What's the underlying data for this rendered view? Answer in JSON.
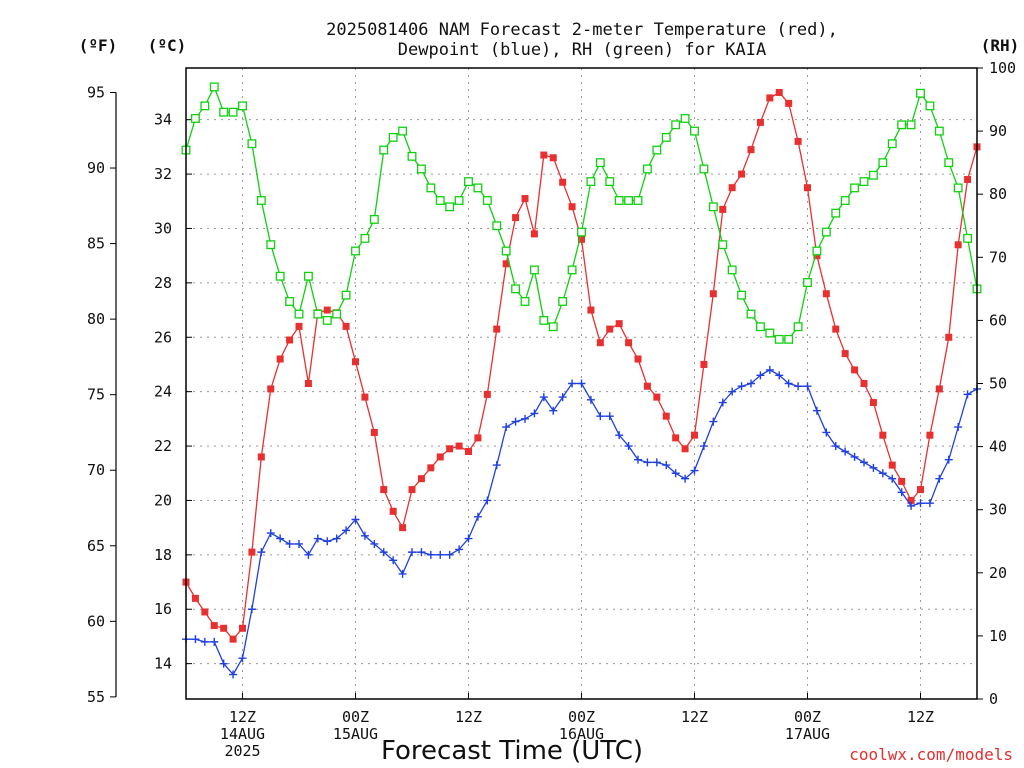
{
  "chart_data": {
    "type": "line",
    "title_line1": "2025081406 NAM Forecast 2-meter Temperature (red),",
    "title_line2": "Dewpoint (blue), RH (green) for KAIA",
    "xlabel": "Forecast Time (UTC)",
    "credit": "coolwx.com/models",
    "unit_f": "(ºF)",
    "unit_c": "(ºC)",
    "unit_rh": "(RH)",
    "x_unit": "forecast hour",
    "x_range": [
      0,
      84
    ],
    "celsius_range": [
      12.7,
      35.9
    ],
    "fahrenheit_ticks": [
      55,
      60,
      65,
      70,
      75,
      80,
      85,
      90,
      95
    ],
    "fahrenheit_tick_labels": [
      "55",
      "60",
      "65",
      "70",
      "75",
      "80",
      "85",
      "90",
      "95"
    ],
    "celsius_ticks": [
      14,
      16,
      18,
      20,
      22,
      24,
      26,
      28,
      30,
      32,
      34
    ],
    "celsius_tick_labels": [
      "14",
      "16",
      "18",
      "20",
      "22",
      "24",
      "26",
      "28",
      "30",
      "32",
      "34"
    ],
    "rh_range": [
      0,
      100
    ],
    "rh_ticks": [
      0,
      10,
      20,
      30,
      40,
      50,
      60,
      70,
      80,
      90,
      100
    ],
    "rh_tick_labels": [
      "0",
      "10",
      "20",
      "30",
      "40",
      "50",
      "60",
      "70",
      "80",
      "90",
      "100"
    ],
    "x_ticks": [
      {
        "x": 6,
        "lines": [
          "12Z",
          "14AUG",
          "2025"
        ]
      },
      {
        "x": 18,
        "lines": [
          "00Z",
          "15AUG"
        ]
      },
      {
        "x": 30,
        "lines": [
          "12Z"
        ]
      },
      {
        "x": 42,
        "lines": [
          "00Z",
          "16AUG"
        ]
      },
      {
        "x": 54,
        "lines": [
          "12Z"
        ]
      },
      {
        "x": 66,
        "lines": [
          "00Z",
          "17AUG"
        ]
      },
      {
        "x": 78,
        "lines": [
          "12Z"
        ]
      }
    ],
    "grid": true,
    "series": [
      {
        "name": "Temperature",
        "axis": "celsius",
        "color": "#e83030",
        "marker": "filled-square",
        "points": [
          [
            0,
            17.0
          ],
          [
            1,
            16.4
          ],
          [
            2,
            15.9
          ],
          [
            3,
            15.4
          ],
          [
            4,
            15.3
          ],
          [
            5,
            14.9
          ],
          [
            6,
            15.3
          ],
          [
            7,
            18.1
          ],
          [
            8,
            21.6
          ],
          [
            9,
            24.1
          ],
          [
            10,
            25.2
          ],
          [
            11,
            25.9
          ],
          [
            12,
            26.4
          ],
          [
            13,
            24.3
          ],
          [
            14,
            26.9
          ],
          [
            15,
            27.0
          ],
          [
            16,
            26.9
          ],
          [
            17,
            26.4
          ],
          [
            18,
            25.1
          ],
          [
            19,
            23.8
          ],
          [
            20,
            22.5
          ],
          [
            21,
            20.4
          ],
          [
            22,
            19.6
          ],
          [
            23,
            19.0
          ],
          [
            24,
            20.4
          ],
          [
            25,
            20.8
          ],
          [
            26,
            21.2
          ],
          [
            27,
            21.6
          ],
          [
            28,
            21.9
          ],
          [
            29,
            22.0
          ],
          [
            30,
            21.8
          ],
          [
            31,
            22.3
          ],
          [
            32,
            23.9
          ],
          [
            33,
            26.3
          ],
          [
            34,
            28.7
          ],
          [
            35,
            30.4
          ],
          [
            36,
            31.1
          ],
          [
            37,
            29.8
          ],
          [
            38,
            32.7
          ],
          [
            39,
            32.6
          ],
          [
            40,
            31.7
          ],
          [
            41,
            30.8
          ],
          [
            42,
            29.6
          ],
          [
            43,
            27.0
          ],
          [
            44,
            25.8
          ],
          [
            45,
            26.3
          ],
          [
            46,
            26.5
          ],
          [
            47,
            25.8
          ],
          [
            48,
            25.2
          ],
          [
            49,
            24.2
          ],
          [
            50,
            23.8
          ],
          [
            51,
            23.1
          ],
          [
            52,
            22.3
          ],
          [
            53,
            21.9
          ],
          [
            54,
            22.4
          ],
          [
            55,
            25.0
          ],
          [
            56,
            27.6
          ],
          [
            57,
            30.7
          ],
          [
            58,
            31.5
          ],
          [
            59,
            32.0
          ],
          [
            60,
            32.9
          ],
          [
            61,
            33.9
          ],
          [
            62,
            34.8
          ],
          [
            63,
            35.0
          ],
          [
            64,
            34.6
          ],
          [
            65,
            33.2
          ],
          [
            66,
            31.5
          ],
          [
            67,
            29.0
          ],
          [
            68,
            27.6
          ],
          [
            69,
            26.3
          ],
          [
            70,
            25.4
          ],
          [
            71,
            24.8
          ],
          [
            72,
            24.3
          ],
          [
            73,
            23.6
          ],
          [
            74,
            22.4
          ],
          [
            75,
            21.3
          ],
          [
            76,
            20.7
          ],
          [
            77,
            20.0
          ],
          [
            78,
            20.4
          ],
          [
            79,
            22.4
          ],
          [
            80,
            24.1
          ],
          [
            81,
            26.0
          ],
          [
            82,
            29.4
          ],
          [
            83,
            31.8
          ],
          [
            84,
            33.0
          ]
        ]
      },
      {
        "name": "Dewpoint",
        "axis": "celsius",
        "color": "#2040e0",
        "marker": "plus",
        "points": [
          [
            0,
            14.9
          ],
          [
            1,
            14.9
          ],
          [
            2,
            14.8
          ],
          [
            3,
            14.8
          ],
          [
            4,
            14.0
          ],
          [
            5,
            13.6
          ],
          [
            6,
            14.2
          ],
          [
            7,
            16.0
          ],
          [
            8,
            18.1
          ],
          [
            9,
            18.8
          ],
          [
            10,
            18.6
          ],
          [
            11,
            18.4
          ],
          [
            12,
            18.4
          ],
          [
            13,
            18.0
          ],
          [
            14,
            18.6
          ],
          [
            15,
            18.5
          ],
          [
            16,
            18.6
          ],
          [
            17,
            18.9
          ],
          [
            18,
            19.3
          ],
          [
            19,
            18.7
          ],
          [
            20,
            18.4
          ],
          [
            21,
            18.1
          ],
          [
            22,
            17.8
          ],
          [
            23,
            17.3
          ],
          [
            24,
            18.1
          ],
          [
            25,
            18.1
          ],
          [
            26,
            18.0
          ],
          [
            27,
            18.0
          ],
          [
            28,
            18.0
          ],
          [
            29,
            18.2
          ],
          [
            30,
            18.6
          ],
          [
            31,
            19.4
          ],
          [
            32,
            20.0
          ],
          [
            33,
            21.3
          ],
          [
            34,
            22.7
          ],
          [
            35,
            22.9
          ],
          [
            36,
            23.0
          ],
          [
            37,
            23.2
          ],
          [
            38,
            23.8
          ],
          [
            39,
            23.3
          ],
          [
            40,
            23.8
          ],
          [
            41,
            24.3
          ],
          [
            42,
            24.3
          ],
          [
            43,
            23.7
          ],
          [
            44,
            23.1
          ],
          [
            45,
            23.1
          ],
          [
            46,
            22.4
          ],
          [
            47,
            22.0
          ],
          [
            48,
            21.5
          ],
          [
            49,
            21.4
          ],
          [
            50,
            21.4
          ],
          [
            51,
            21.3
          ],
          [
            52,
            21.0
          ],
          [
            53,
            20.8
          ],
          [
            54,
            21.1
          ],
          [
            55,
            22.0
          ],
          [
            56,
            22.9
          ],
          [
            57,
            23.6
          ],
          [
            58,
            24.0
          ],
          [
            59,
            24.2
          ],
          [
            60,
            24.3
          ],
          [
            61,
            24.6
          ],
          [
            62,
            24.8
          ],
          [
            63,
            24.6
          ],
          [
            64,
            24.3
          ],
          [
            65,
            24.2
          ],
          [
            66,
            24.2
          ],
          [
            67,
            23.3
          ],
          [
            68,
            22.5
          ],
          [
            69,
            22.0
          ],
          [
            70,
            21.8
          ],
          [
            71,
            21.6
          ],
          [
            72,
            21.4
          ],
          [
            73,
            21.2
          ],
          [
            74,
            21.0
          ],
          [
            75,
            20.8
          ],
          [
            76,
            20.3
          ],
          [
            77,
            19.8
          ],
          [
            78,
            19.9
          ],
          [
            79,
            19.9
          ],
          [
            80,
            20.8
          ],
          [
            81,
            21.5
          ],
          [
            82,
            22.7
          ],
          [
            83,
            23.9
          ],
          [
            84,
            24.1
          ]
        ]
      },
      {
        "name": "RH",
        "axis": "rh",
        "color": "#10d010",
        "marker": "open-square",
        "points": [
          [
            0,
            87
          ],
          [
            1,
            92
          ],
          [
            2,
            94
          ],
          [
            3,
            97
          ],
          [
            4,
            93
          ],
          [
            5,
            93
          ],
          [
            6,
            94
          ],
          [
            7,
            88
          ],
          [
            8,
            79
          ],
          [
            9,
            72
          ],
          [
            10,
            67
          ],
          [
            11,
            63
          ],
          [
            12,
            61
          ],
          [
            13,
            67
          ],
          [
            14,
            61
          ],
          [
            15,
            60
          ],
          [
            16,
            61
          ],
          [
            17,
            64
          ],
          [
            18,
            71
          ],
          [
            19,
            73
          ],
          [
            20,
            76
          ],
          [
            21,
            87
          ],
          [
            22,
            89
          ],
          [
            23,
            90
          ],
          [
            24,
            86
          ],
          [
            25,
            84
          ],
          [
            26,
            81
          ],
          [
            27,
            79
          ],
          [
            28,
            78
          ],
          [
            29,
            79
          ],
          [
            30,
            82
          ],
          [
            31,
            81
          ],
          [
            32,
            79
          ],
          [
            33,
            75
          ],
          [
            34,
            71
          ],
          [
            35,
            65
          ],
          [
            36,
            63
          ],
          [
            37,
            68
          ],
          [
            38,
            60
          ],
          [
            39,
            59
          ],
          [
            40,
            63
          ],
          [
            41,
            68
          ],
          [
            42,
            74
          ],
          [
            43,
            82
          ],
          [
            44,
            85
          ],
          [
            45,
            82
          ],
          [
            46,
            79
          ],
          [
            47,
            79
          ],
          [
            48,
            79
          ],
          [
            49,
            84
          ],
          [
            50,
            87
          ],
          [
            51,
            89
          ],
          [
            52,
            91
          ],
          [
            53,
            92
          ],
          [
            54,
            90
          ],
          [
            55,
            84
          ],
          [
            56,
            78
          ],
          [
            57,
            72
          ],
          [
            58,
            68
          ],
          [
            59,
            64
          ],
          [
            60,
            61
          ],
          [
            61,
            59
          ],
          [
            62,
            58
          ],
          [
            63,
            57
          ],
          [
            64,
            57
          ],
          [
            65,
            59
          ],
          [
            66,
            66
          ],
          [
            67,
            71
          ],
          [
            68,
            74
          ],
          [
            69,
            77
          ],
          [
            70,
            79
          ],
          [
            71,
            81
          ],
          [
            72,
            82
          ],
          [
            73,
            83
          ],
          [
            74,
            85
          ],
          [
            75,
            88
          ],
          [
            76,
            91
          ],
          [
            77,
            91
          ],
          [
            78,
            96
          ],
          [
            79,
            94
          ],
          [
            80,
            90
          ],
          [
            81,
            85
          ],
          [
            82,
            81
          ],
          [
            83,
            73
          ],
          [
            84,
            65
          ]
        ]
      }
    ]
  }
}
